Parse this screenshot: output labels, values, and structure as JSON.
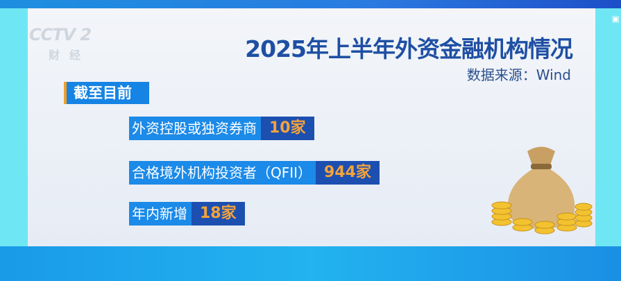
{
  "broadcast": {
    "channel_logo": "CCTV 2",
    "channel_sub": "财经"
  },
  "title": "2025年上半年外资金融机构情况",
  "source": "数据来源：Wind",
  "section_label": "截至目前",
  "rows": [
    {
      "label": "外资控股或独资券商",
      "value": "10家"
    },
    {
      "label": "合格境外机构投资者（QFII）",
      "value": "944家"
    },
    {
      "label": "年内新增",
      "value": "18家"
    }
  ],
  "colors": {
    "title": "#1e4fa3",
    "label_bg": "#1b8ae8",
    "value_bg": "#1c4fb0",
    "value_text": "#f5a33a",
    "accent": "#f0a02a"
  },
  "illustration": "money-bag-with-coins-icon"
}
